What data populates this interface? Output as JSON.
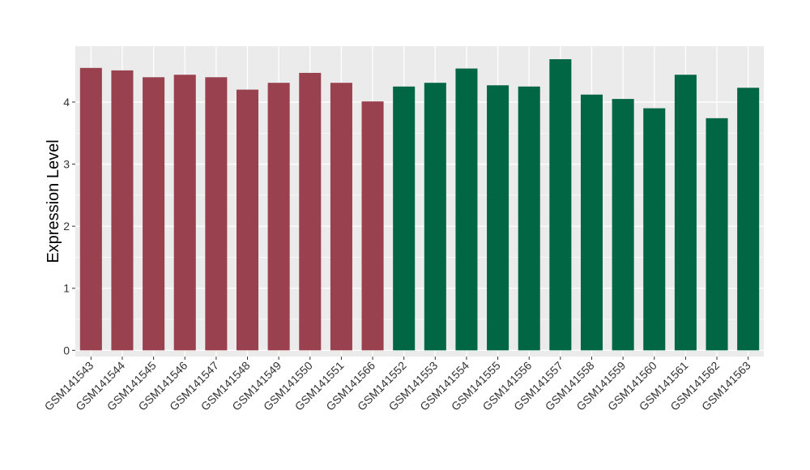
{
  "chart_data": {
    "type": "bar",
    "title": "",
    "xlabel": "",
    "ylabel": "Expression Level",
    "ylim": [
      -0.1,
      4.9
    ],
    "yticks": [
      0,
      1,
      2,
      3,
      4
    ],
    "grid": true,
    "legend": "none",
    "categories": [
      "GSM141543",
      "GSM141544",
      "GSM141545",
      "GSM141546",
      "GSM141547",
      "GSM141548",
      "GSM141549",
      "GSM141550",
      "GSM141551",
      "GSM141566",
      "GSM141552",
      "GSM141553",
      "GSM141554",
      "GSM141555",
      "GSM141556",
      "GSM141557",
      "GSM141558",
      "GSM141559",
      "GSM141560",
      "GSM141561",
      "GSM141562",
      "GSM141563"
    ],
    "values": [
      4.55,
      4.51,
      4.4,
      4.44,
      4.4,
      4.2,
      4.31,
      4.47,
      4.31,
      4.01,
      4.25,
      4.31,
      4.54,
      4.27,
      4.25,
      4.69,
      4.12,
      4.05,
      3.9,
      4.44,
      3.74,
      4.23
    ],
    "bar_colors": [
      "#9A4150",
      "#9A4150",
      "#9A4150",
      "#9A4150",
      "#9A4150",
      "#9A4150",
      "#9A4150",
      "#9A4150",
      "#9A4150",
      "#9A4150",
      "#006644",
      "#006644",
      "#006644",
      "#006644",
      "#006644",
      "#006644",
      "#006644",
      "#006644",
      "#006644",
      "#006644",
      "#006644",
      "#006644"
    ],
    "panel_background": "#EBEBEB",
    "gridline_color": "#FFFFFF"
  }
}
